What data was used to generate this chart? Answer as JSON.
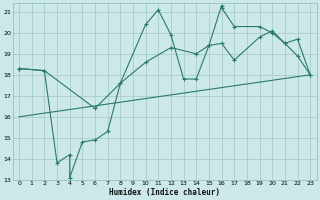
{
  "title": "",
  "xlabel": "Humidex (Indice chaleur)",
  "bg_color": "#cce8e8",
  "grid_color": "#aacccc",
  "line_color": "#2a7a6a",
  "xlim": [
    -0.5,
    23.5
  ],
  "ylim": [
    13,
    21.4
  ],
  "xticks": [
    0,
    1,
    2,
    3,
    4,
    5,
    6,
    7,
    8,
    9,
    10,
    11,
    12,
    13,
    14,
    15,
    16,
    17,
    18,
    19,
    20,
    21,
    22,
    23
  ],
  "yticks": [
    13,
    14,
    15,
    16,
    17,
    18,
    19,
    20,
    21
  ],
  "line1_x": [
    0,
    2,
    3,
    4,
    4,
    5,
    6,
    7,
    8,
    10,
    11,
    12,
    13,
    14,
    15,
    16,
    16,
    17,
    19,
    20,
    21,
    22,
    23
  ],
  "line1_y": [
    18.3,
    18.2,
    13.8,
    14.2,
    13.1,
    14.8,
    14.9,
    15.3,
    17.6,
    20.4,
    21.1,
    19.9,
    17.8,
    17.8,
    19.4,
    21.3,
    21.2,
    20.3,
    20.3,
    20.0,
    19.5,
    18.9,
    18.0
  ],
  "line2_x": [
    0,
    2,
    6,
    8,
    10,
    12,
    14,
    15,
    16,
    17,
    19,
    20,
    21,
    22,
    23
  ],
  "line2_y": [
    18.3,
    18.2,
    16.4,
    17.6,
    18.6,
    19.3,
    19.0,
    19.4,
    19.5,
    18.7,
    19.8,
    20.1,
    19.5,
    19.7,
    18.0
  ],
  "line3_x": [
    0,
    23
  ],
  "line3_y": [
    16.0,
    18.0
  ]
}
